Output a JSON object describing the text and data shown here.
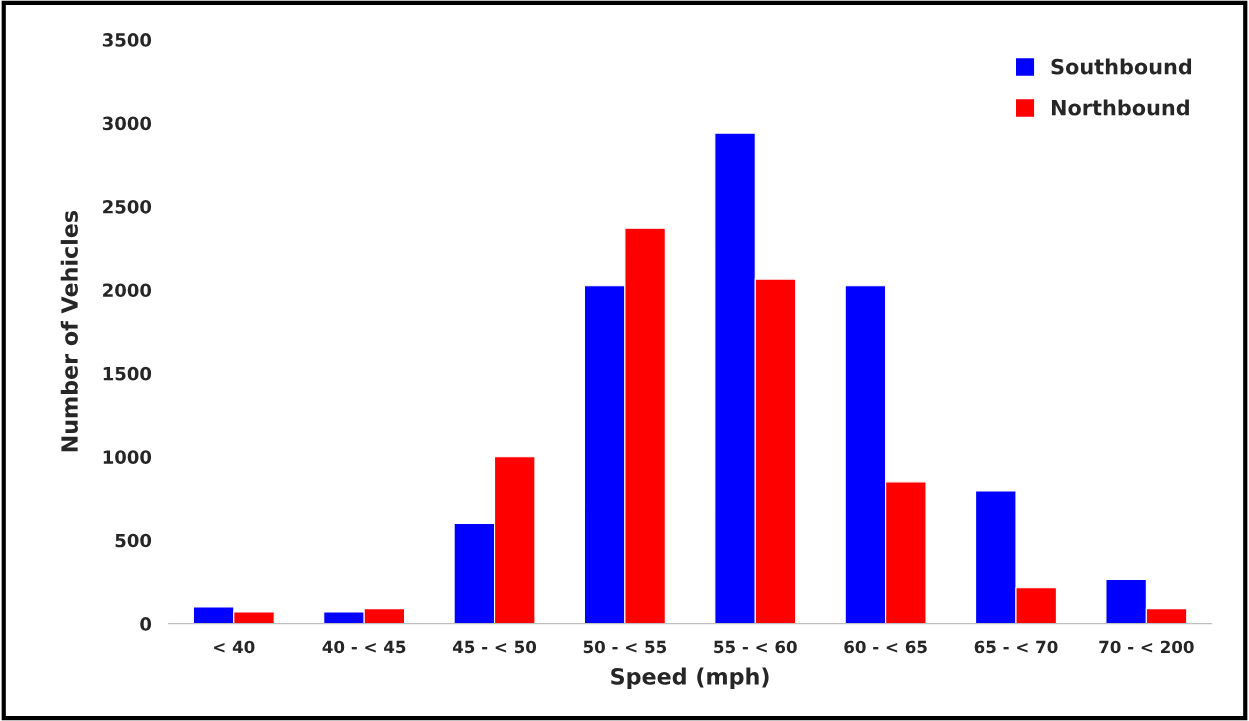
{
  "chart_data": {
    "type": "bar",
    "xlabel": "Speed (mph)",
    "ylabel": "Number of Vehicles",
    "categories": [
      "< 40",
      "40 - < 45",
      "45 - < 50",
      "50 - < 55",
      "55 - < 60",
      "60 - < 65",
      "65 - < 70",
      "70 - < 200"
    ],
    "series": [
      {
        "name": "Southbound",
        "color": "#0000ff",
        "values": [
          100,
          70,
          600,
          2025,
          2940,
          2025,
          795,
          265
        ]
      },
      {
        "name": "Northbound",
        "color": "#ff0000",
        "values": [
          70,
          90,
          1000,
          2370,
          2065,
          850,
          215,
          90
        ]
      }
    ],
    "ylim": [
      0,
      3500
    ],
    "yticks": [
      0,
      500,
      1000,
      1500,
      2000,
      2500,
      3000,
      3500
    ],
    "grid": false,
    "legend": "top right"
  }
}
